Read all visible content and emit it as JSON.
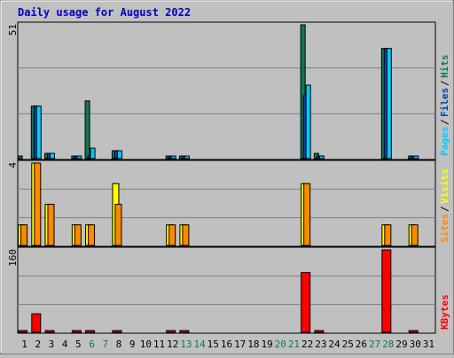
{
  "chart_data": [
    {
      "type": "bar",
      "title": "Daily usage for August 2022",
      "categories": [
        "1",
        "2",
        "3",
        "4",
        "5",
        "6",
        "7",
        "8",
        "9",
        "10",
        "11",
        "12",
        "13",
        "14",
        "15",
        "16",
        "17",
        "18",
        "19",
        "20",
        "21",
        "22",
        "23",
        "24",
        "25",
        "26",
        "27",
        "28",
        "29",
        "30",
        "31"
      ],
      "weekend_days": [
        "6",
        "7",
        "13",
        "14",
        "20",
        "21",
        "27",
        "28"
      ],
      "ymax_label": "51",
      "ylim": [
        0,
        51
      ],
      "legend": [
        "Pages",
        "Files",
        "Hits"
      ],
      "legend_placement": "right",
      "series": [
        {
          "name": "Hits",
          "color": "#117755",
          "values": [
            1,
            20,
            2,
            0,
            1,
            22,
            0,
            3,
            0,
            0,
            0,
            1,
            1,
            0,
            0,
            0,
            0,
            0,
            0,
            0,
            0,
            51,
            2,
            0,
            0,
            0,
            0,
            42,
            0,
            1,
            0
          ]
        },
        {
          "name": "Pages",
          "color": "#0044aa",
          "values": [
            0,
            20,
            2,
            0,
            1,
            1,
            0,
            3,
            0,
            0,
            0,
            1,
            1,
            0,
            0,
            0,
            0,
            0,
            0,
            0,
            0,
            24,
            1,
            0,
            0,
            0,
            0,
            42,
            0,
            1,
            0
          ]
        },
        {
          "name": "Files",
          "color": "#00ccff",
          "values": [
            0,
            20,
            2,
            0,
            1,
            4,
            0,
            3,
            0,
            0,
            0,
            1,
            1,
            0,
            0,
            0,
            0,
            0,
            0,
            0,
            0,
            28,
            1,
            0,
            0,
            0,
            0,
            42,
            0,
            1,
            0
          ]
        }
      ]
    },
    {
      "type": "bar",
      "ymax_label": "4",
      "ylim": [
        0,
        4
      ],
      "legend": [
        "Sites",
        "Visits"
      ],
      "legend_placement": "right",
      "series": [
        {
          "name": "Visits",
          "color": "#ffff00",
          "values": [
            1,
            4,
            2,
            0,
            1,
            1,
            0,
            3,
            0,
            0,
            0,
            1,
            1,
            0,
            0,
            0,
            0,
            0,
            0,
            0,
            0,
            3,
            0,
            0,
            0,
            0,
            0,
            1,
            0,
            1,
            0
          ]
        },
        {
          "name": "Sites",
          "color": "#ff8800",
          "values": [
            1,
            4,
            2,
            0,
            1,
            1,
            0,
            2,
            0,
            0,
            0,
            1,
            1,
            0,
            0,
            0,
            0,
            0,
            0,
            0,
            0,
            3,
            0,
            0,
            0,
            0,
            0,
            1,
            0,
            1,
            0
          ]
        }
      ]
    },
    {
      "type": "bar",
      "ymax_label": "160",
      "ylim": [
        0,
        160
      ],
      "legend": [
        "KBytes"
      ],
      "legend_placement": "right",
      "series": [
        {
          "name": "KBytes",
          "color": "#ff0000",
          "values": [
            1,
            36,
            1,
            0,
            1,
            3,
            0,
            1,
            0,
            0,
            0,
            1,
            1,
            0,
            0,
            0,
            0,
            0,
            0,
            0,
            0,
            116,
            1,
            0,
            0,
            0,
            0,
            160,
            0,
            1,
            0
          ]
        }
      ]
    }
  ],
  "colors": {
    "background": "#c0c0c0",
    "title": "#0000c0",
    "weekday_label": "#000000",
    "weekend_label": "#117755",
    "grid": "#808080",
    "plot_border": "#000000"
  }
}
